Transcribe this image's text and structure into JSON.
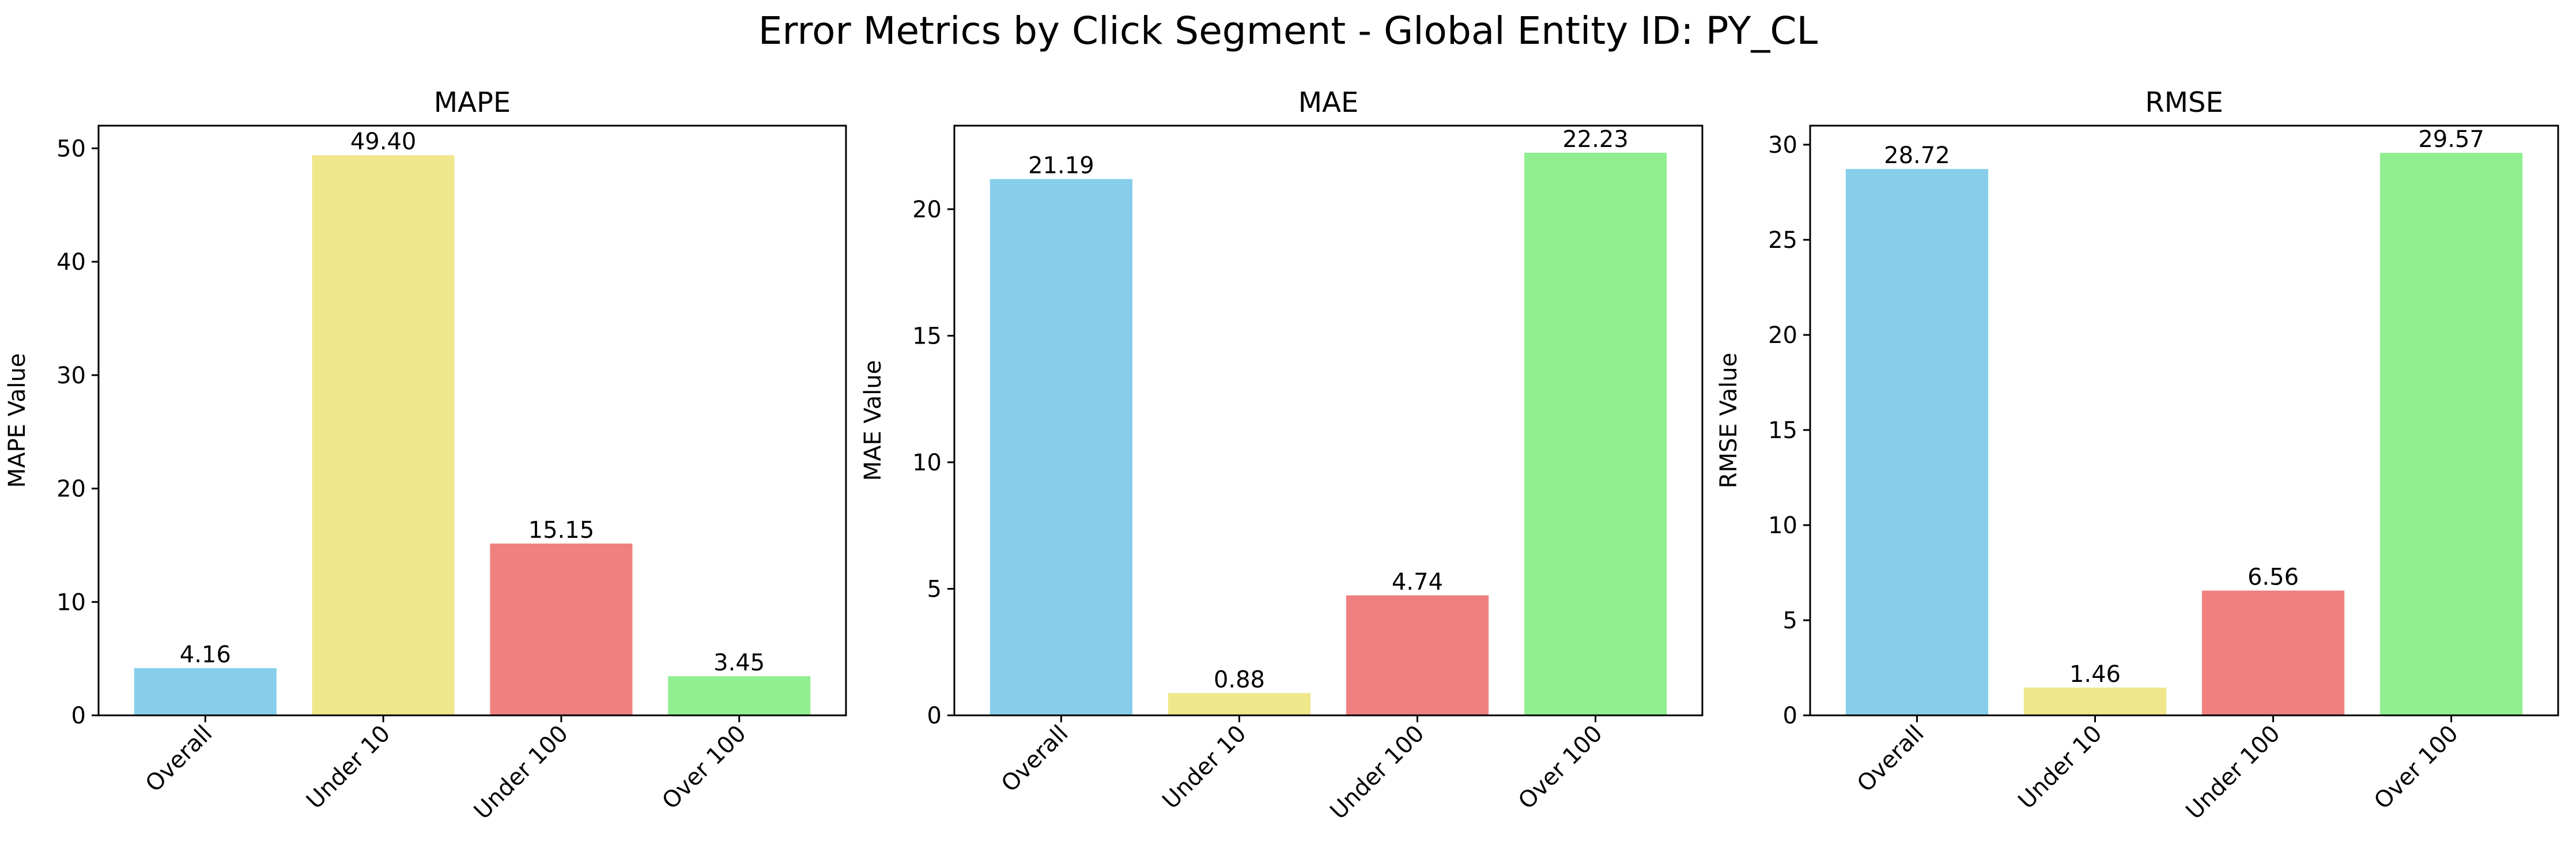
{
  "figure": {
    "title": "Error Metrics by Click Segment - Global Entity ID: PY_CL"
  },
  "chart_data": [
    {
      "type": "bar",
      "title": "MAPE",
      "xlabel": "",
      "ylabel": "MAPE Value",
      "categories": [
        "Overall",
        "Under 10",
        "Under 100",
        "Over 100"
      ],
      "values": [
        4.16,
        49.4,
        15.15,
        3.45
      ],
      "value_labels": [
        "4.16",
        "49.40",
        "15.15",
        "3.45"
      ],
      "colors": [
        "#87CEEB",
        "#F0E68C",
        "#F08080",
        "#90EE90"
      ],
      "ylim": [
        0,
        52
      ],
      "yticks": [
        0,
        10,
        20,
        30,
        40,
        50
      ],
      "grid": false
    },
    {
      "type": "bar",
      "title": "MAE",
      "xlabel": "",
      "ylabel": "MAE Value",
      "categories": [
        "Overall",
        "Under 10",
        "Under 100",
        "Over 100"
      ],
      "values": [
        21.19,
        0.88,
        4.74,
        22.23
      ],
      "value_labels": [
        "21.19",
        "0.88",
        "4.74",
        "22.23"
      ],
      "colors": [
        "#87CEEB",
        "#F0E68C",
        "#F08080",
        "#90EE90"
      ],
      "ylim": [
        0,
        23.3
      ],
      "yticks": [
        0,
        5,
        10,
        15,
        20
      ],
      "grid": false
    },
    {
      "type": "bar",
      "title": "RMSE",
      "xlabel": "",
      "ylabel": "RMSE Value",
      "categories": [
        "Overall",
        "Under 10",
        "Under 100",
        "Over 100"
      ],
      "values": [
        28.72,
        1.46,
        6.56,
        29.57
      ],
      "value_labels": [
        "28.72",
        "1.46",
        "6.56",
        "29.57"
      ],
      "colors": [
        "#87CEEB",
        "#F0E68C",
        "#F08080",
        "#90EE90"
      ],
      "ylim": [
        0,
        31
      ],
      "yticks": [
        0,
        5,
        10,
        15,
        20,
        25,
        30
      ],
      "grid": false
    }
  ]
}
